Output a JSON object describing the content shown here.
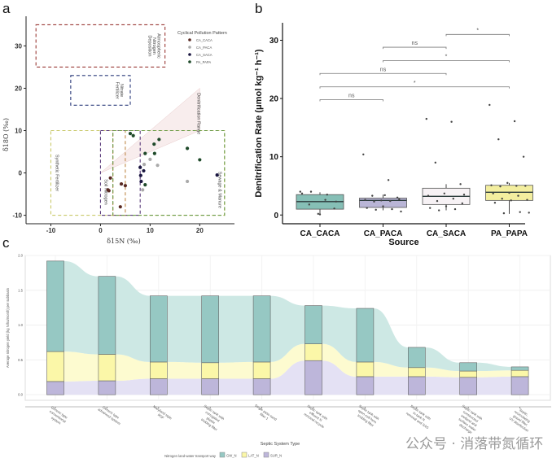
{
  "chart_data": [
    {
      "panel": "a",
      "type": "scatter",
      "title": "",
      "xlabel": "δ15N (‰)",
      "ylabel": "δ18O (‰)",
      "xlim": [
        -15,
        27
      ],
      "ylim": [
        -12,
        37
      ],
      "xticks": [
        -10,
        0,
        10,
        20
      ],
      "yticks": [
        -10,
        0,
        10,
        20,
        30
      ],
      "legend": {
        "title": "Cyclical Pollution Pattern",
        "placement": "top-right",
        "entries": [
          {
            "name": "CA_CACA",
            "color": "#5a2a22"
          },
          {
            "name": "CA_PACA",
            "color": "#aaaaaa"
          },
          {
            "name": "CA_SACA",
            "color": "#1a1640"
          },
          {
            "name": "PA_PAPA",
            "color": "#1f4a2a"
          }
        ]
      },
      "regions": [
        {
          "name": "Atmospheric Nitrogen Deposition",
          "x": [
            -13,
            13
          ],
          "y": [
            25,
            35
          ],
          "color": "#9a3a36"
        },
        {
          "name": "Nitrate Fertilizer",
          "x": [
            -6,
            6
          ],
          "y": [
            16,
            23
          ],
          "color": "#2a3a7a"
        },
        {
          "name": "Synthetic Fertilizer",
          "x": [
            -10,
            25
          ],
          "y": [
            -10,
            10
          ],
          "color": "#c9c96a"
        },
        {
          "name": "Soil Nitrogen",
          "x": [
            0,
            8
          ],
          "y": [
            -10,
            10
          ],
          "color": "#5a3a7a"
        },
        {
          "name": "Soil Nitrogen inner",
          "x": [
            2.5,
            5
          ],
          "y": [
            -10,
            10
          ],
          "color": "#c08a4a"
        },
        {
          "name": "Sewage & Manure",
          "x": [
            2.5,
            25
          ],
          "y": [
            -10,
            10
          ],
          "color": "#6a9a4a"
        }
      ],
      "denitrification_range": {
        "label": "Denitrification Range",
        "origin": [
          0,
          0
        ],
        "upper_end": [
          20,
          20
        ],
        "lower_end": [
          20,
          10
        ]
      },
      "series": [
        {
          "name": "CA_CACA",
          "points": [
            [
              2,
              -1.2
            ],
            [
              1.5,
              -4
            ],
            [
              1.7,
              -4.2
            ],
            [
              4.2,
              -2.6
            ],
            [
              5,
              -3
            ],
            [
              4,
              -8
            ]
          ]
        },
        {
          "name": "CA_PACA",
          "points": [
            [
              8.8,
              2
            ],
            [
              10,
              3.2
            ],
            [
              11.5,
              1.8
            ],
            [
              17.5,
              -2
            ],
            [
              8.5,
              -4
            ]
          ]
        },
        {
          "name": "CA_SACA",
          "points": [
            [
              8,
              1.3
            ],
            [
              8.7,
              0.5
            ],
            [
              8.1,
              -0.6
            ],
            [
              8.2,
              -2
            ],
            [
              23.5,
              -0.5
            ]
          ]
        },
        {
          "name": "PA_PAPA",
          "points": [
            [
              6,
              9.3
            ],
            [
              6.6,
              8.8
            ],
            [
              9,
              4.6
            ],
            [
              10.8,
              6.8
            ],
            [
              11.8,
              7.9
            ],
            [
              10.9,
              4.6
            ],
            [
              17.5,
              5.8
            ],
            [
              20,
              3.1
            ],
            [
              9,
              -2.8
            ]
          ]
        }
      ]
    },
    {
      "panel": "b",
      "type": "box",
      "xlabel": "Source",
      "ylabel": "Denitrification Rate (μmol kg⁻¹ h⁻¹)",
      "ylim": [
        -1.5,
        33
      ],
      "yticks": [
        0,
        10,
        20,
        30
      ],
      "categories": [
        "CA_CACA",
        "CA_PACA",
        "CA_SACA",
        "PA_PAPA"
      ],
      "boxes": [
        {
          "name": "CA_CACA",
          "q1": 1.0,
          "median": 2.3,
          "q3": 3.5,
          "whisker_low": 0.2,
          "whisker_high": 3.9,
          "color": "#86bfb6",
          "points": [
            4,
            2.6,
            1.8,
            1.1,
            0.2,
            3.7,
            3.5,
            4,
            2.3,
            0.1
          ]
        },
        {
          "name": "CA_PACA",
          "q1": 1.3,
          "median": 2.5,
          "q3": 2.9,
          "whisker_low": 0.8,
          "whisker_high": 3.5,
          "color": "#b9b5d6",
          "points": [
            10.4,
            6,
            3.3,
            3,
            2.5,
            2.6,
            2.4,
            2.3,
            2.7,
            1.5,
            1.2,
            1,
            0.9,
            0.6,
            3.4
          ]
        },
        {
          "name": "CA_SACA",
          "q1": 1.8,
          "median": 3.2,
          "q3": 4.6,
          "whisker_low": 0.8,
          "whisker_high": 5.3,
          "color": "#f7f2f5",
          "points": [
            16.5,
            16,
            9,
            5.3,
            3.7,
            3.3,
            2.8,
            2.4,
            2,
            1.5,
            1.2,
            1,
            0.8,
            3.5
          ]
        },
        {
          "name": "PA_PAPA",
          "q1": 2.5,
          "median": 3.9,
          "q3": 5.1,
          "whisker_low": 0.2,
          "whisker_high": 5.5,
          "color": "#f3ee9f",
          "points": [
            18.9,
            16.1,
            13,
            10,
            5.5,
            5.1,
            5,
            4.9,
            5,
            3.8,
            3.7,
            3.3,
            2.8,
            2.6,
            2.5,
            2.1,
            0.5,
            0.3,
            0.4
          ]
        }
      ],
      "comparisons": [
        {
          "groups": [
            "CA_CACA",
            "CA_PACA"
          ],
          "label": "ns",
          "y": 19.8
        },
        {
          "groups": [
            "CA_CACA",
            "PA_PAPA"
          ],
          "label": "*",
          "y": 22
        },
        {
          "groups": [
            "CA_CACA",
            "CA_SACA"
          ],
          "label": "ns",
          "y": 24.3
        },
        {
          "groups": [
            "CA_PACA",
            "PA_PAPA"
          ],
          "label": "*",
          "y": 26.5
        },
        {
          "groups": [
            "CA_PACA",
            "CA_SACA"
          ],
          "label": "ns",
          "y": 28.8
        },
        {
          "groups": [
            "CA_SACA",
            "PA_PAPA"
          ],
          "label": "*",
          "y": 31
        }
      ]
    },
    {
      "panel": "c",
      "type": "bar",
      "stacked": true,
      "xlabel": "Septic System Type",
      "ylabel": "Average nitrogen yield (kg N/ha/month) per subbasin",
      "ylim": [
        -0.08,
        2.0
      ],
      "yticks": [
        0.0,
        0.5,
        1.0,
        1.5,
        2.0
      ],
      "grid": true,
      "legend": {
        "title": "Nitrogen land-water transport way",
        "placement": "bottom"
      },
      "categories": [
        "Generic type conventional system",
        "Generic type advanced system",
        "Maryland style RSF",
        "Septic tank with corrugated plastic trickling filter",
        "Single pass sand filter 1",
        "Septic tank with effluent N removal recycle",
        "Septic tank with open-cell form trickling filter",
        "Septic tank with in-tank N removal and SAS",
        "Septic tank with constructed wetland and surface water discharge",
        "Septic, recirculating gravel filter, UV disinfection"
      ],
      "series": [
        {
          "name": "SUR_N",
          "color": "#bdb6da",
          "values": [
            0.19,
            0.2,
            0.23,
            0.23,
            0.23,
            0.49,
            0.26,
            0.26,
            0.25,
            0.26
          ]
        },
        {
          "name": "LAT_N",
          "color": "#fbf7a8",
          "values": [
            0.43,
            0.38,
            0.24,
            0.23,
            0.24,
            0.24,
            0.21,
            0.13,
            0.09,
            0.09
          ]
        },
        {
          "name": "GW_N",
          "color": "#96c8c3",
          "values": [
            1.3,
            1.12,
            0.95,
            0.96,
            0.95,
            0.55,
            0.77,
            0.29,
            0.12,
            0.05
          ]
        }
      ]
    }
  ],
  "figure": {
    "panel_labels": [
      "a",
      "b",
      "c"
    ],
    "watermark": "公众号 · 消落带氮循环"
  }
}
